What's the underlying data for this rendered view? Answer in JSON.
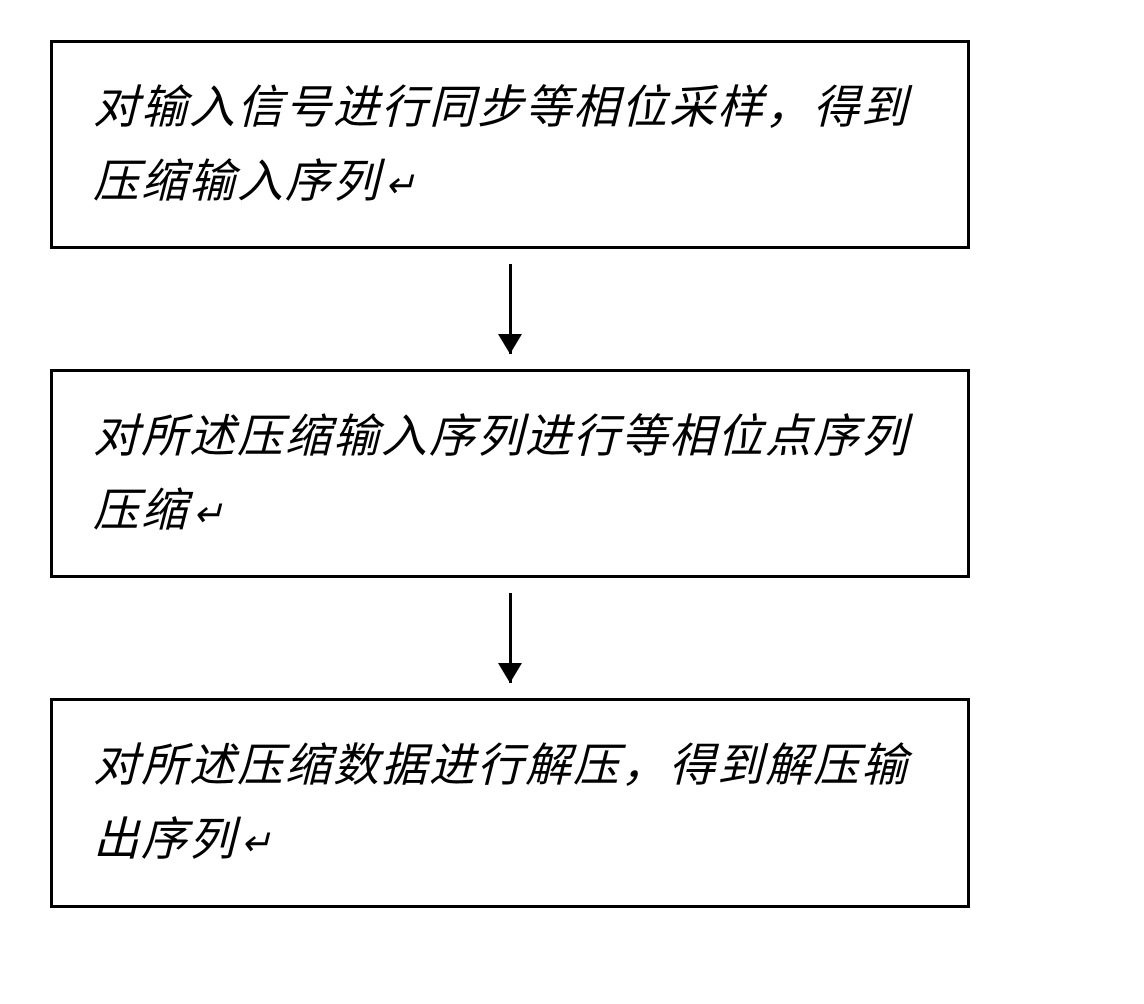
{
  "flowchart": {
    "type": "flowchart",
    "direction": "vertical",
    "background_color": "#ffffff",
    "box_border_color": "#000000",
    "box_border_width": 3,
    "arrow_color": "#000000",
    "arrow_width": 3,
    "font_family": "KaiTi",
    "font_size": 46,
    "text_color": "#000000",
    "nodes": [
      {
        "id": "step1",
        "text": "对输入信号进行同步等相位采样，得到压缩输入序列",
        "return_mark": "↵"
      },
      {
        "id": "step2",
        "text": "对所述压缩输入序列进行等相位点序列压缩",
        "return_mark": "↵"
      },
      {
        "id": "step3",
        "text": "对所述压缩数据进行解压，得到解压输出序列",
        "return_mark": "↵"
      }
    ],
    "edges": [
      {
        "from": "step1",
        "to": "step2"
      },
      {
        "from": "step2",
        "to": "step3"
      }
    ]
  }
}
